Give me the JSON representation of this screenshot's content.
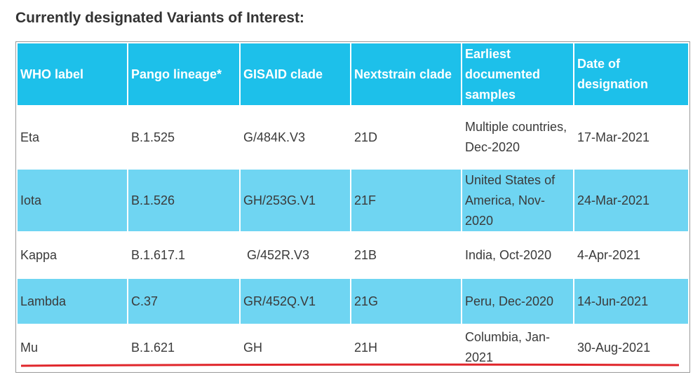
{
  "heading": "Currently designated Variants of Interest:",
  "columns": [
    "WHO label",
    "Pango lineage*",
    "GISAID clade",
    "Nextstrain clade",
    "Earliest documented samples",
    "Date of designation"
  ],
  "rows": [
    {
      "who": "Eta",
      "pango": "B.1.525",
      "gisaid": "G/484K.V3",
      "nextstrain": "21D",
      "earliest": "Multiple countries, Dec-2020",
      "date": "17-Mar-2021"
    },
    {
      "who": "Iota",
      "pango": "B.1.526",
      "gisaid": "GH/253G.V1",
      "nextstrain": "21F",
      "earliest": "United States of America, Nov-2020",
      "date": "24-Mar-2021"
    },
    {
      "who": "Kappa",
      "pango": "B.1.617.1",
      "gisaid": " G/452R.V3",
      "nextstrain": "21B",
      "earliest": "India, Oct-2020",
      "date": "4-Apr-2021"
    },
    {
      "who": "Lambda",
      "pango": "C.37",
      "gisaid": "GR/452Q.V1",
      "nextstrain": "21G",
      "earliest": "Peru, Dec-2020",
      "date": "14-Jun-2021"
    },
    {
      "who": "Mu",
      "pango": "B.1.621",
      "gisaid": "GH",
      "nextstrain": "21H",
      "earliest": "Columbia, Jan-2021",
      "date": "30-Aug-2021"
    }
  ],
  "colors": {
    "header_bg": "#1dc0ea",
    "stripe_bg": "#6fd5f2",
    "underline": "#e0262b"
  }
}
